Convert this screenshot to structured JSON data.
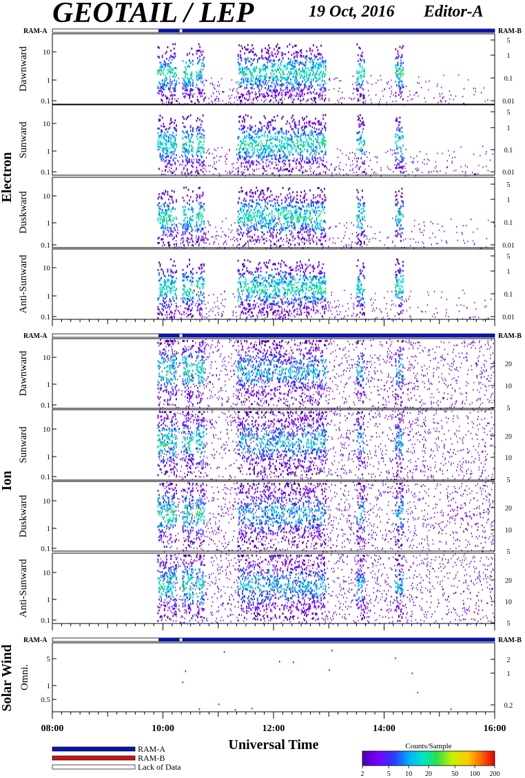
{
  "title": "GEOTAIL / LEP",
  "date": "19 Oct, 2016",
  "editor": "Editor-A",
  "colors": {
    "ram_a": "#0a14b4",
    "ram_b": "#d21414",
    "lack": "#ffffff",
    "scale": [
      "#4b00b4",
      "#7a00ff",
      "#2a3cff",
      "#00b4ff",
      "#00e6c8",
      "#28e050",
      "#c8f000",
      "#ffc800",
      "#ff6400",
      "#e60000"
    ]
  },
  "bars": {
    "ram_a_label": "RAM-A",
    "ram_b_label": "RAM-B"
  },
  "groups": [
    {
      "name": "Electron",
      "panels": [
        "Dawnward",
        "Sunward",
        "Duskward",
        "Anti-Sunward"
      ]
    },
    {
      "name": "Ion",
      "panels": [
        "Dawnward",
        "Sunward",
        "Duskward",
        "Anti-Sunward"
      ]
    },
    {
      "name": "Solar Wind",
      "panels": [
        "Omni."
      ]
    }
  ],
  "axes": {
    "electron_left_ticks": [
      "10",
      "1",
      "0.1"
    ],
    "electron_right_ticks": [
      "5",
      "1",
      "0.1",
      "0.01"
    ],
    "ion_left_ticks": [
      "10",
      "1",
      "0.1"
    ],
    "ion_right_ticks": [
      "20",
      "10",
      "5"
    ],
    "sw_left_ticks": [
      "5",
      "1",
      "0.5"
    ],
    "sw_right_ticks": [
      "2",
      "1",
      "0.2"
    ]
  },
  "time_axis": {
    "label": "Universal Time",
    "ticks": [
      "08:00",
      "10:00",
      "12:00",
      "14:00",
      "16:00"
    ]
  },
  "legend": {
    "ram_a": "RAM-A",
    "ram_b": "RAM-B",
    "lack": "Lack of Data"
  },
  "colorbar": {
    "title": "Counts/Sample",
    "ticks": [
      "2",
      "5",
      "10",
      "20",
      "50",
      "100",
      "200"
    ]
  },
  "chart_data": {
    "type": "heatmap",
    "title": "GEOTAIL / LEP",
    "xlabel": "Universal Time",
    "x_range": [
      "08:00",
      "16:00"
    ],
    "ram_a_coverage": [
      "09:55",
      "16:00"
    ],
    "data_gaps": [
      "10:18",
      "10:21"
    ],
    "burst_intervals_hours": [
      [
        9.9,
        10.25
      ],
      [
        10.35,
        10.55
      ],
      [
        10.6,
        10.75
      ],
      [
        11.35,
        11.7
      ],
      [
        11.7,
        12.0
      ],
      [
        12.0,
        12.3
      ],
      [
        12.3,
        12.55
      ],
      [
        12.55,
        12.95
      ],
      [
        13.5,
        13.65
      ],
      [
        14.2,
        14.35
      ]
    ],
    "colorbar_range": [
      2,
      200
    ],
    "colorbar_scale": "log"
  }
}
